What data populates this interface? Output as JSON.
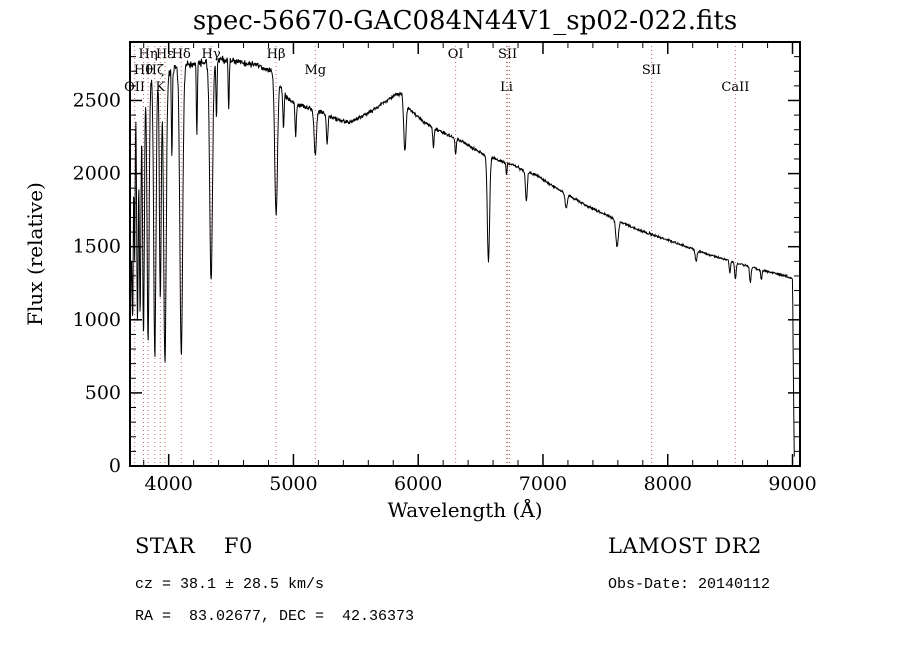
{
  "figure": {
    "annotations": {
      "class_line": "STAR    F0",
      "survey": "LAMOST DR2",
      "cz_line": "cz = 38.1 ± 28.5 km/s",
      "obs_date": "Obs-Date: 20140112",
      "radec_line": "RA =  83.02677, DEC =  42.36373"
    }
  },
  "chart_data": {
    "type": "line",
    "title": "spec-56670-GAC084N44V1_sp02-022.fits",
    "xlabel": "Wavelength (Å)",
    "ylabel": "Flux (relative)",
    "xlim": [
      3690,
      9060
    ],
    "ylim": [
      0,
      2900
    ],
    "xticks": [
      4000,
      5000,
      6000,
      7000,
      8000,
      9000
    ],
    "yticks": [
      0,
      500,
      1000,
      1500,
      2000,
      2500
    ],
    "grid": false,
    "line_color": "#000000",
    "marker_line_color": "#c46a6a",
    "continuum_points": [
      [
        3695,
        2350
      ],
      [
        3720,
        2480
      ],
      [
        3760,
        2560
      ],
      [
        3800,
        2600
      ],
      [
        3850,
        2650
      ],
      [
        3900,
        2680
      ],
      [
        3960,
        2700
      ],
      [
        4000,
        2700
      ],
      [
        4100,
        2730
      ],
      [
        4200,
        2750
      ],
      [
        4300,
        2760
      ],
      [
        4400,
        2780
      ],
      [
        4500,
        2770
      ],
      [
        4600,
        2755
      ],
      [
        4700,
        2745
      ],
      [
        4800,
        2710
      ],
      [
        4861,
        2690
      ],
      [
        4900,
        2600
      ],
      [
        4950,
        2520
      ],
      [
        5000,
        2480
      ],
      [
        5100,
        2455
      ],
      [
        5175,
        2440
      ],
      [
        5250,
        2410
      ],
      [
        5350,
        2370
      ],
      [
        5450,
        2350
      ],
      [
        5550,
        2390
      ],
      [
        5650,
        2440
      ],
      [
        5750,
        2500
      ],
      [
        5820,
        2540
      ],
      [
        5870,
        2545
      ],
      [
        5920,
        2450
      ],
      [
        5980,
        2400
      ],
      [
        6050,
        2350
      ],
      [
        6150,
        2300
      ],
      [
        6250,
        2260
      ],
      [
        6350,
        2220
      ],
      [
        6450,
        2170
      ],
      [
        6550,
        2120
      ],
      [
        6650,
        2090
      ],
      [
        6750,
        2060
      ],
      [
        6850,
        2020
      ],
      [
        6950,
        1990
      ],
      [
        7050,
        1930
      ],
      [
        7150,
        1880
      ],
      [
        7250,
        1830
      ],
      [
        7350,
        1780
      ],
      [
        7450,
        1740
      ],
      [
        7550,
        1700
      ],
      [
        7650,
        1660
      ],
      [
        7750,
        1620
      ],
      [
        7850,
        1590
      ],
      [
        7950,
        1560
      ],
      [
        8050,
        1530
      ],
      [
        8150,
        1500
      ],
      [
        8250,
        1470
      ],
      [
        8350,
        1440
      ],
      [
        8450,
        1415
      ],
      [
        8550,
        1390
      ],
      [
        8650,
        1365
      ],
      [
        8750,
        1340
      ],
      [
        8850,
        1320
      ],
      [
        8950,
        1300
      ],
      [
        9000,
        1280
      ],
      [
        9050,
        1270
      ]
    ],
    "absorption_lines": [
      {
        "center": 3712,
        "depth": 0.55,
        "width": 5
      },
      {
        "center": 3727,
        "depth": 0.45,
        "width": 4
      },
      {
        "center": 3750,
        "depth": 0.62,
        "width": 6
      },
      {
        "center": 3771,
        "depth": 0.6,
        "width": 6
      },
      {
        "center": 3798,
        "depth": 0.65,
        "width": 7
      },
      {
        "center": 3835,
        "depth": 0.68,
        "width": 8
      },
      {
        "center": 3889,
        "depth": 0.72,
        "width": 9
      },
      {
        "center": 3933,
        "depth": 0.58,
        "width": 7
      },
      {
        "center": 3970,
        "depth": 0.74,
        "width": 10
      },
      {
        "center": 4026,
        "depth": 0.22,
        "width": 4
      },
      {
        "center": 4101,
        "depth": 0.72,
        "width": 11
      },
      {
        "center": 4226,
        "depth": 0.18,
        "width": 4
      },
      {
        "center": 4340,
        "depth": 0.55,
        "width": 11
      },
      {
        "center": 4383,
        "depth": 0.15,
        "width": 4
      },
      {
        "center": 4481,
        "depth": 0.12,
        "width": 4
      },
      {
        "center": 4861,
        "depth": 0.36,
        "width": 11
      },
      {
        "center": 4920,
        "depth": 0.1,
        "width": 5
      },
      {
        "center": 5018,
        "depth": 0.09,
        "width": 5
      },
      {
        "center": 5175,
        "depth": 0.13,
        "width": 9
      },
      {
        "center": 5270,
        "depth": 0.08,
        "width": 6
      },
      {
        "center": 5893,
        "depth": 0.14,
        "width": 9
      },
      {
        "center": 6122,
        "depth": 0.06,
        "width": 5
      },
      {
        "center": 6300,
        "depth": 0.05,
        "width": 5
      },
      {
        "center": 6563,
        "depth": 0.34,
        "width": 9
      },
      {
        "center": 6708,
        "depth": 0.04,
        "width": 4
      },
      {
        "center": 6867,
        "depth": 0.1,
        "width": 7
      },
      {
        "center": 7186,
        "depth": 0.05,
        "width": 9
      },
      {
        "center": 7594,
        "depth": 0.11,
        "width": 10
      },
      {
        "center": 8227,
        "depth": 0.05,
        "width": 7
      },
      {
        "center": 8498,
        "depth": 0.06,
        "width": 5
      },
      {
        "center": 8542,
        "depth": 0.08,
        "width": 6
      },
      {
        "center": 8662,
        "depth": 0.08,
        "width": 6
      },
      {
        "center": 8750,
        "depth": 0.05,
        "width": 5
      }
    ],
    "spectral_line_markers": [
      {
        "label": "OII",
        "wavelength": 3727,
        "row": 3
      },
      {
        "label": "Hθ",
        "wavelength": 3798,
        "row": 2
      },
      {
        "label": "Hη",
        "wavelength": 3835,
        "row": 1
      },
      {
        "label": "Hζ",
        "wavelength": 3889,
        "row": 2
      },
      {
        "label": "K",
        "wavelength": 3933,
        "row": 3
      },
      {
        "label": "Hε",
        "wavelength": 3970,
        "row": 1
      },
      {
        "label": "Hδ",
        "wavelength": 4101,
        "row": 1
      },
      {
        "label": "Hγ",
        "wavelength": 4340,
        "row": 1
      },
      {
        "label": "Hβ",
        "wavelength": 4861,
        "row": 1
      },
      {
        "label": "Mg",
        "wavelength": 5175,
        "row": 2
      },
      {
        "label": "OI",
        "wavelength": 6300,
        "row": 1
      },
      {
        "label": "Li",
        "wavelength": 6708,
        "row": 3
      },
      {
        "label": "SII",
        "wavelength": 6716,
        "row": 1
      },
      {
        "label": "",
        "wavelength": 6731,
        "row": 1
      },
      {
        "label": "SII",
        "wavelength": 7870,
        "row": 2
      },
      {
        "label": "CaII",
        "wavelength": 8542,
        "row": 3
      }
    ],
    "edge_dropoff": {
      "blue_end": 3715,
      "red_end": 9000,
      "red_min_flux": 60
    }
  }
}
